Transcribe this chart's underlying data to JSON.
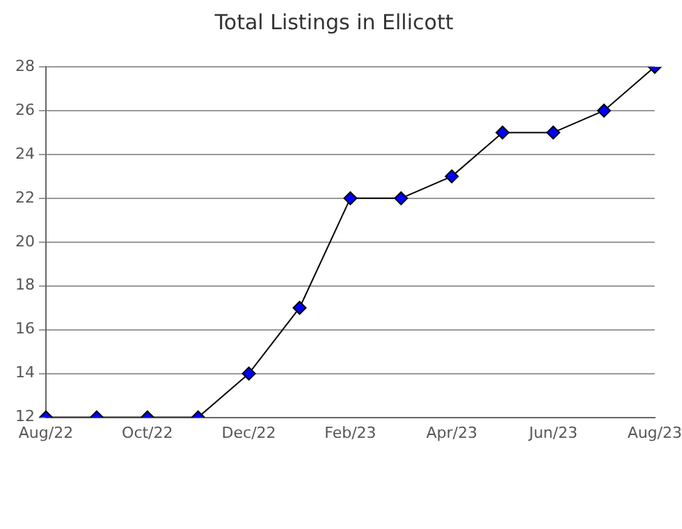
{
  "chart_data": {
    "type": "line",
    "title": "Total Listings in Ellicott",
    "categories": [
      "Aug/22",
      null,
      "Oct/22",
      null,
      "Dec/22",
      null,
      "Feb/23",
      null,
      "Apr/23",
      null,
      "Jun/23",
      null,
      "Aug/23"
    ],
    "series": [
      {
        "color": "#0000ff",
        "values": [
          12,
          12,
          12,
          12,
          14,
          17,
          22,
          22,
          23,
          25,
          25,
          26,
          28
        ]
      }
    ],
    "ylim": [
      12,
      28
    ],
    "yticks": [
      12,
      14,
      16,
      18,
      20,
      22,
      24,
      26,
      28
    ],
    "grid": "y",
    "legend": false,
    "marker": "diamond",
    "line_style": "solid"
  }
}
